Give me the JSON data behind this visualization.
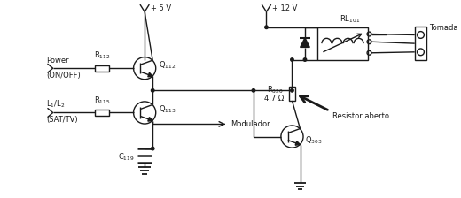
{
  "bg_color": "#ffffff",
  "line_color": "#1a1a1a",
  "line_width": 1.0,
  "fig_width": 5.2,
  "fig_height": 2.24,
  "dpi": 100,
  "labels": {
    "R112": "R$_{112}$",
    "R115": "R$_{115}$",
    "C119": "C$_{119}$",
    "Q112": "Q$_{112}$",
    "Q113": "Q$_{113}$",
    "Q303": "Q$_{303}$",
    "RL101": "RL$_{101}$",
    "R320": "R$_{320}$",
    "R320val": "4,7 Ω",
    "power": "Power",
    "onoff": "(ON/OFF)",
    "l1l2": "L$_1$/L$_2$",
    "sattv": "(SAT/TV)",
    "modulador": "Modulador",
    "resistor": "Resistor aberto",
    "tomada": "Tomada",
    "v5": "+ 5 V",
    "v12": "+ 12 V"
  },
  "font_size": 6.0
}
